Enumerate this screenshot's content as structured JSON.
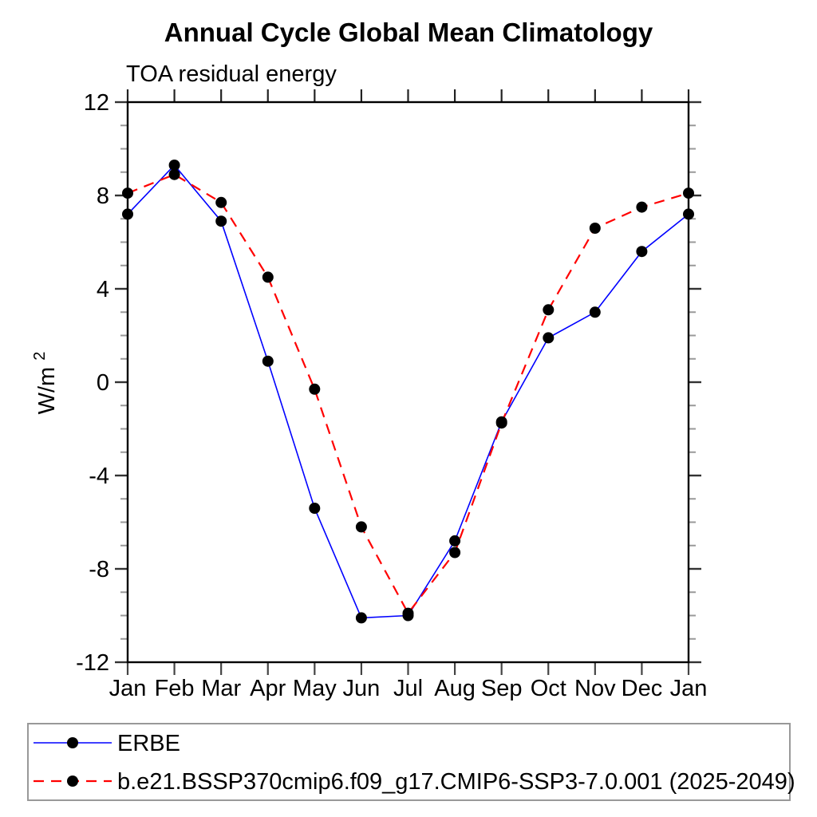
{
  "header": {
    "title": "Annual Cycle Global Mean Climatology",
    "subtitle": "TOA residual energy"
  },
  "y_axis": {
    "base": "W/m",
    "exp": "2",
    "tick_labels": [
      "-12",
      "-8",
      "-4",
      "0",
      "4",
      "8",
      "12"
    ]
  },
  "x_axis": {
    "tick_labels": [
      "Jan",
      "Feb",
      "Mar",
      "Apr",
      "May",
      "Jun",
      "Jul",
      "Aug",
      "Sep",
      "Oct",
      "Nov",
      "Dec",
      "Jan"
    ]
  },
  "legend": {
    "entries": [
      {
        "label": "ERBE",
        "color": "#0000ff",
        "style": "solid",
        "marker": "black-dot"
      },
      {
        "label": "b.e21.BSSP370cmip6.f09_g17.CMIP6-SSP3-7.0.001 (2025-2049)",
        "color": "#ff0000",
        "style": "dashed",
        "marker": "black-dot"
      }
    ]
  },
  "chart_data": {
    "type": "line",
    "title": "Annual Cycle Global Mean Climatology",
    "subtitle": "TOA residual energy",
    "ylabel": "W/m²",
    "xlabel": "",
    "categories": [
      "Jan",
      "Feb",
      "Mar",
      "Apr",
      "May",
      "Jun",
      "Jul",
      "Aug",
      "Sep",
      "Oct",
      "Nov",
      "Dec",
      "Jan"
    ],
    "ylim": [
      -12,
      12
    ],
    "ytick_major": [
      -12,
      -8,
      -4,
      0,
      4,
      8,
      12
    ],
    "ytick_minor_step": 1,
    "grid": false,
    "legend_position": "bottom-left-box",
    "marker": {
      "shape": "circle",
      "color": "#000000",
      "radius": 7
    },
    "series": [
      {
        "name": "ERBE",
        "color": "#0000ff",
        "line_style": "solid",
        "values": [
          7.2,
          9.3,
          6.9,
          0.9,
          -5.4,
          -10.1,
          -10.0,
          -6.8,
          -1.7,
          1.9,
          3.0,
          5.6,
          7.2
        ]
      },
      {
        "name": "b.e21.BSSP370cmip6.f09_g17.CMIP6-SSP3-7.0.001 (2025-2049)",
        "color": "#ff0000",
        "line_style": "dashed",
        "values": [
          8.1,
          8.9,
          7.7,
          4.5,
          -0.3,
          -6.2,
          -9.9,
          -7.3,
          -1.75,
          3.1,
          6.6,
          7.5,
          8.1
        ]
      }
    ]
  }
}
